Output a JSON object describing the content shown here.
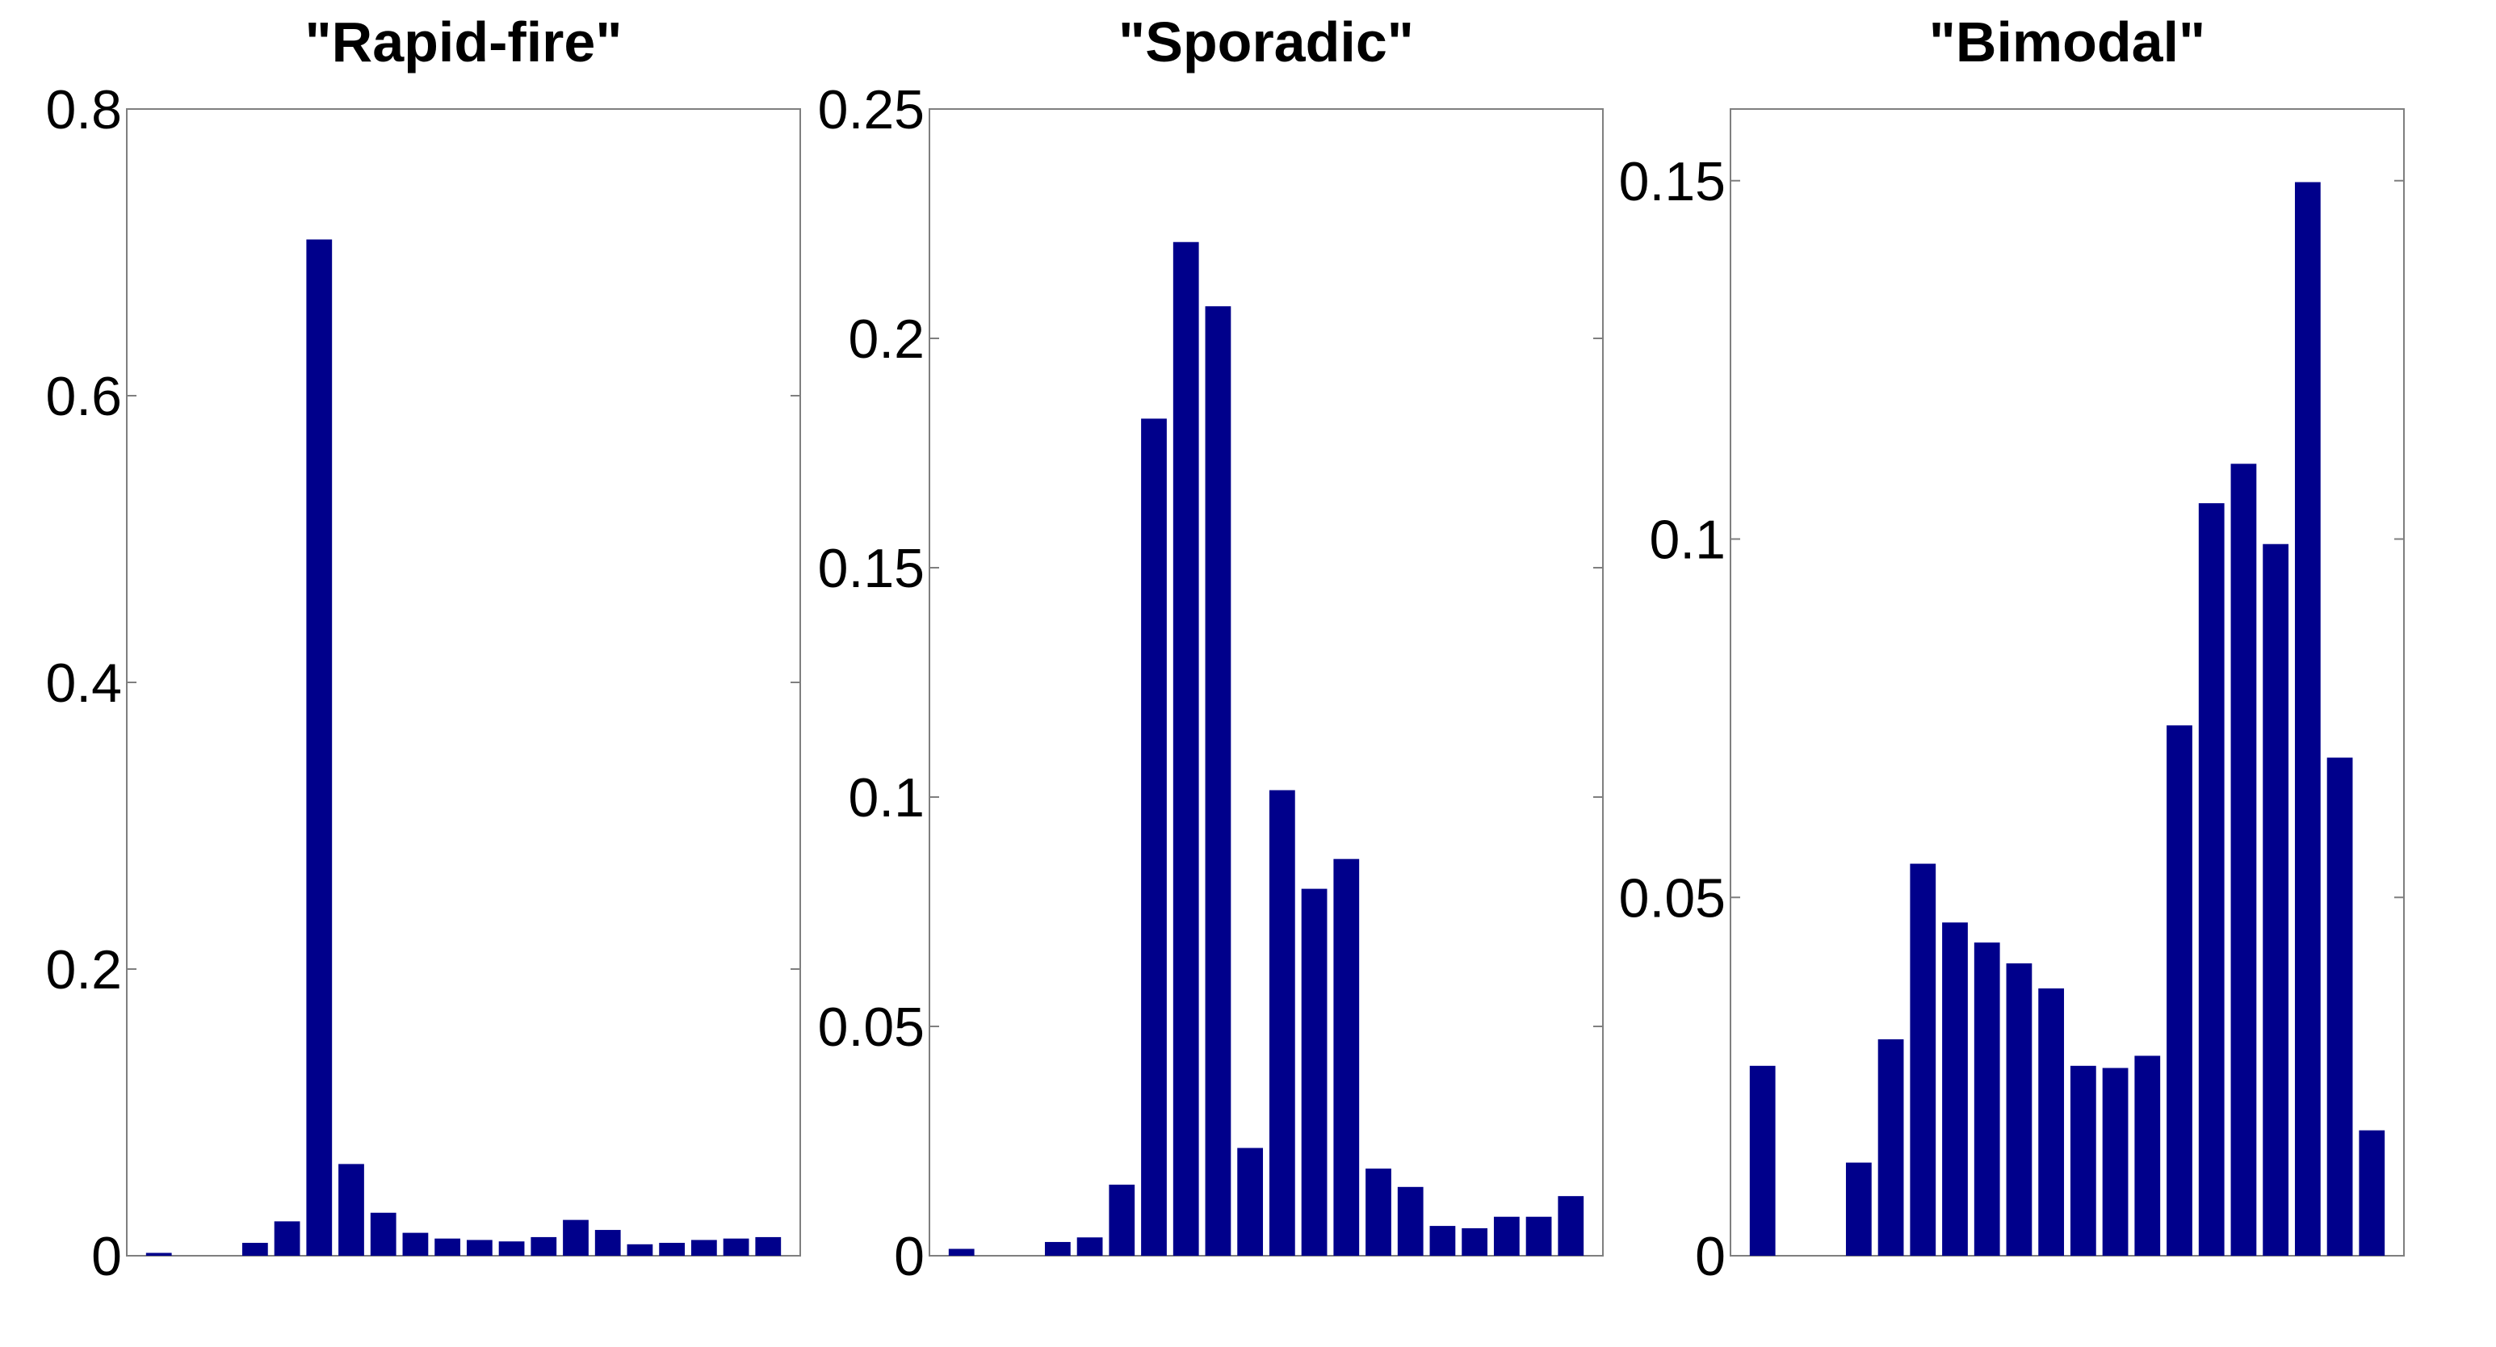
{
  "chart_data": [
    {
      "type": "bar",
      "title": "\"Rapid-fire\"",
      "xlabel": "",
      "ylabel": "",
      "ylim": [
        0,
        0.8
      ],
      "yticks": [
        "0",
        "0.2",
        "0.4",
        "0.6",
        "0.8"
      ],
      "ytick_values": [
        0,
        0.2,
        0.4,
        0.6,
        0.8
      ],
      "bar_color": "#00008b",
      "values": [
        0.002,
        0.0,
        0.0,
        0.009,
        0.024,
        0.709,
        0.064,
        0.03,
        0.016,
        0.012,
        0.011,
        0.01,
        0.013,
        0.025,
        0.018,
        0.008,
        0.009,
        0.011,
        0.012,
        0.013
      ]
    },
    {
      "type": "bar",
      "title": "\"Sporadic\"",
      "xlabel": "",
      "ylabel": "",
      "ylim": [
        0,
        0.25
      ],
      "yticks": [
        "0",
        "0.05",
        "0.1",
        "0.15",
        "0.2",
        "0.25"
      ],
      "ytick_values": [
        0,
        0.05,
        0.1,
        0.15,
        0.2,
        0.25
      ],
      "bar_color": "#00008b",
      "values": [
        0.0015,
        0.0,
        0.0,
        0.003,
        0.004,
        0.0155,
        0.1825,
        0.221,
        0.207,
        0.0235,
        0.1015,
        0.08,
        0.0865,
        0.019,
        0.015,
        0.0065,
        0.006,
        0.0085,
        0.0085,
        0.013
      ]
    },
    {
      "type": "bar",
      "title": "\"Bimodal\"",
      "xlabel": "",
      "ylabel": "",
      "ylim": [
        0,
        0.16
      ],
      "yticks": [
        "0",
        "0.05",
        "0.1",
        "0.15"
      ],
      "ytick_values": [
        0,
        0.05,
        0.1,
        0.15
      ],
      "bar_color": "#00008b",
      "values": [
        0.0265,
        0.0,
        0.0,
        0.013,
        0.0302,
        0.0547,
        0.0465,
        0.0437,
        0.0408,
        0.0373,
        0.0265,
        0.0262,
        0.0279,
        0.074,
        0.105,
        0.1105,
        0.0993,
        0.1498,
        0.0695,
        0.0175
      ]
    }
  ]
}
